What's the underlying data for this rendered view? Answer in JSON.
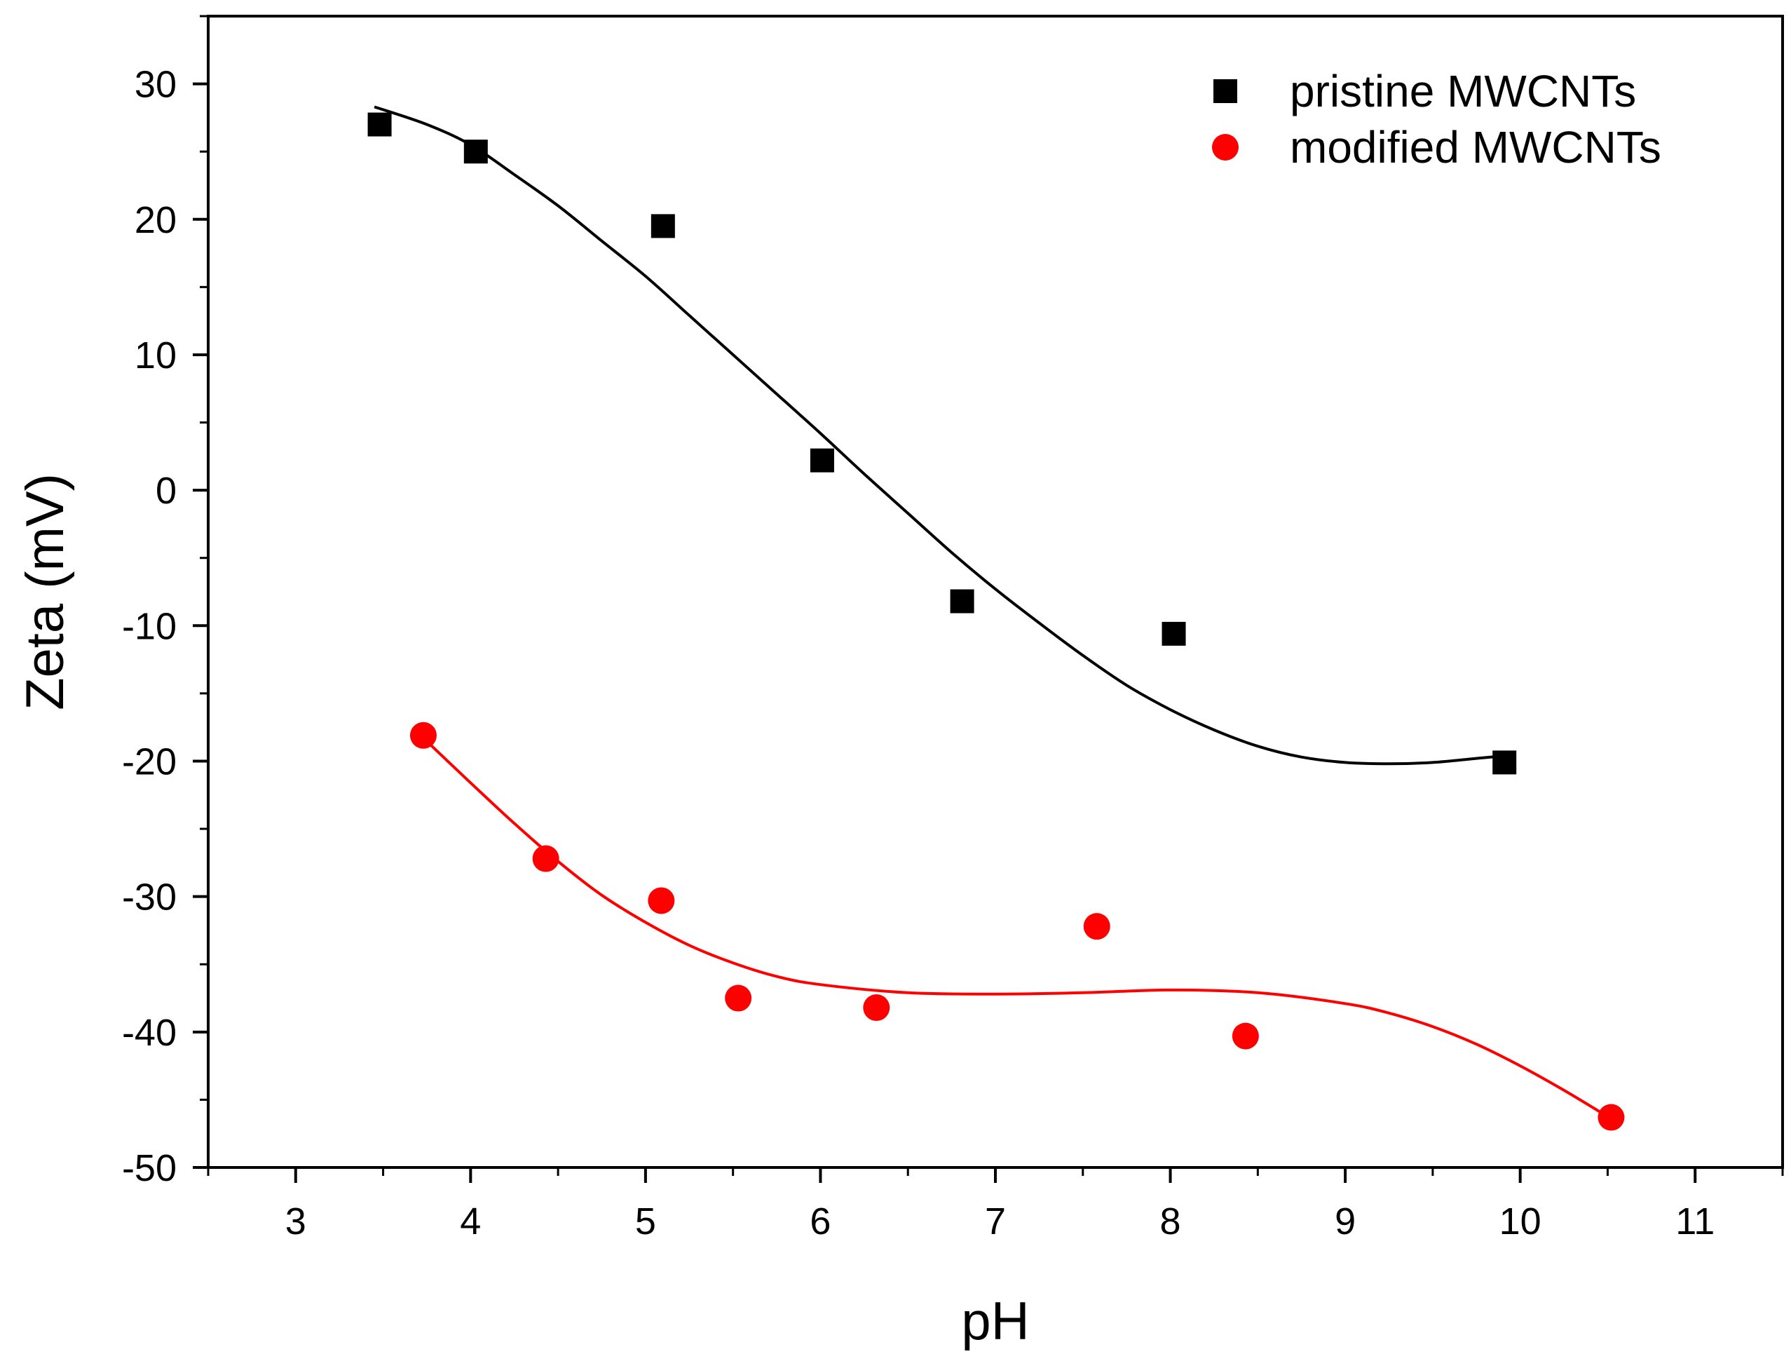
{
  "chart_data": {
    "type": "scatter",
    "xlabel": "pH",
    "ylabel": "Zeta (mV)",
    "xlim": [
      2.5,
      11.5
    ],
    "ylim": [
      -50,
      35
    ],
    "x_ticks": [
      3,
      4,
      5,
      6,
      7,
      8,
      9,
      10,
      11
    ],
    "y_ticks": [
      30,
      20,
      10,
      0,
      -10,
      -20,
      -30,
      -40,
      -50
    ],
    "legend_position": "top-right",
    "grid": false,
    "series": [
      {
        "name": "pristine MWCNTs",
        "marker": "square",
        "color": "#000000",
        "x": [
          3.48,
          4.03,
          5.1,
          6.01,
          6.81,
          8.02,
          9.91
        ],
        "y": [
          27,
          25,
          19.5,
          2.2,
          -8.2,
          -10.6,
          -20.1
        ],
        "fit_x": [
          3.45,
          3.75,
          4.0,
          4.25,
          4.5,
          4.75,
          5.0,
          5.25,
          5.5,
          5.75,
          6.0,
          6.25,
          6.5,
          6.75,
          7.0,
          7.25,
          7.5,
          7.75,
          8.0,
          8.25,
          8.5,
          8.75,
          9.0,
          9.25,
          9.5,
          9.75,
          9.92
        ],
        "fit_y": [
          28.3,
          27.0,
          25.5,
          23.3,
          21.0,
          18.4,
          15.8,
          12.9,
          10.0,
          7.1,
          4.2,
          1.2,
          -1.7,
          -4.6,
          -7.3,
          -9.8,
          -12.2,
          -14.4,
          -16.2,
          -17.7,
          -18.9,
          -19.7,
          -20.1,
          -20.2,
          -20.1,
          -19.8,
          -19.6
        ]
      },
      {
        "name": "modified MWCNTs",
        "marker": "circle",
        "color": "#ff0000",
        "x": [
          3.73,
          4.43,
          5.09,
          5.53,
          6.32,
          7.58,
          8.43,
          10.52
        ],
        "y": [
          -18.1,
          -27.2,
          -30.3,
          -37.5,
          -38.2,
          -32.2,
          -40.3,
          -46.3
        ],
        "fit_x": [
          3.73,
          4.0,
          4.25,
          4.5,
          4.75,
          5.0,
          5.25,
          5.5,
          5.75,
          6.0,
          6.5,
          7.0,
          7.5,
          8.0,
          8.5,
          9.0,
          9.25,
          9.5,
          9.75,
          10.0,
          10.25,
          10.52
        ],
        "fit_y": [
          -18.3,
          -21.6,
          -24.6,
          -27.4,
          -29.9,
          -31.9,
          -33.6,
          -34.9,
          -35.9,
          -36.5,
          -37.1,
          -37.2,
          -37.1,
          -36.9,
          -37.1,
          -37.9,
          -38.6,
          -39.6,
          -40.9,
          -42.5,
          -44.3,
          -46.4
        ]
      }
    ]
  }
}
